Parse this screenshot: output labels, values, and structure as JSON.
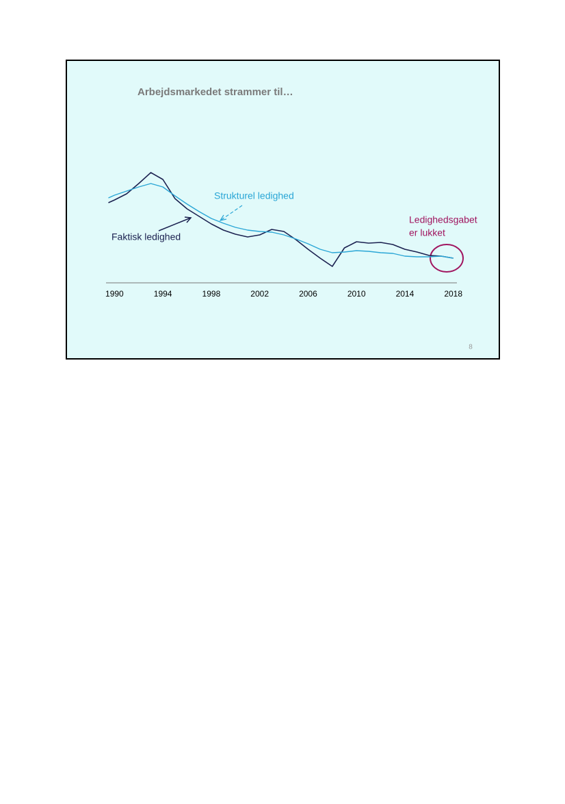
{
  "chart_data": {
    "type": "line",
    "title": "Arbejdsmarkedet strammer til…",
    "x": [
      1989.5,
      1990,
      1991,
      1992,
      1993,
      1994,
      1995,
      1996,
      1997,
      1998,
      1999,
      2000,
      2001,
      2002,
      2003,
      2004,
      2005,
      2006,
      2007,
      2008,
      2009,
      2010,
      2011,
      2012,
      2013,
      2014,
      2015,
      2016,
      2017,
      2018
    ],
    "series": [
      {
        "name": "Faktisk ledighed",
        "color": "#1b2150",
        "values": [
          5.85,
          6.05,
          6.5,
          7.25,
          8.05,
          7.55,
          6.15,
          5.4,
          4.85,
          4.3,
          3.85,
          3.55,
          3.35,
          3.5,
          3.9,
          3.75,
          3.15,
          2.45,
          1.8,
          1.2,
          2.55,
          3.0,
          2.9,
          2.95,
          2.8,
          2.45,
          2.25,
          2.0,
          1.95,
          1.8
        ]
      },
      {
        "name": "Strukturel ledighed",
        "color": "#2aa6d6",
        "values": [
          6.2,
          6.4,
          6.7,
          7.0,
          7.25,
          7.0,
          6.35,
          5.75,
          5.2,
          4.7,
          4.35,
          4.05,
          3.85,
          3.75,
          3.7,
          3.5,
          3.2,
          2.85,
          2.45,
          2.2,
          2.25,
          2.35,
          2.3,
          2.2,
          2.15,
          1.95,
          1.9,
          1.9,
          1.95,
          1.8
        ]
      }
    ],
    "xlim": [
      1989.3,
      2018.3
    ],
    "xticks": [
      1990,
      1994,
      1998,
      2002,
      2006,
      2010,
      2014,
      2018
    ],
    "ylim": [
      0,
      10
    ],
    "annotations": [
      "Ledighedsgabet",
      "er lukket"
    ],
    "page_number": "8"
  }
}
